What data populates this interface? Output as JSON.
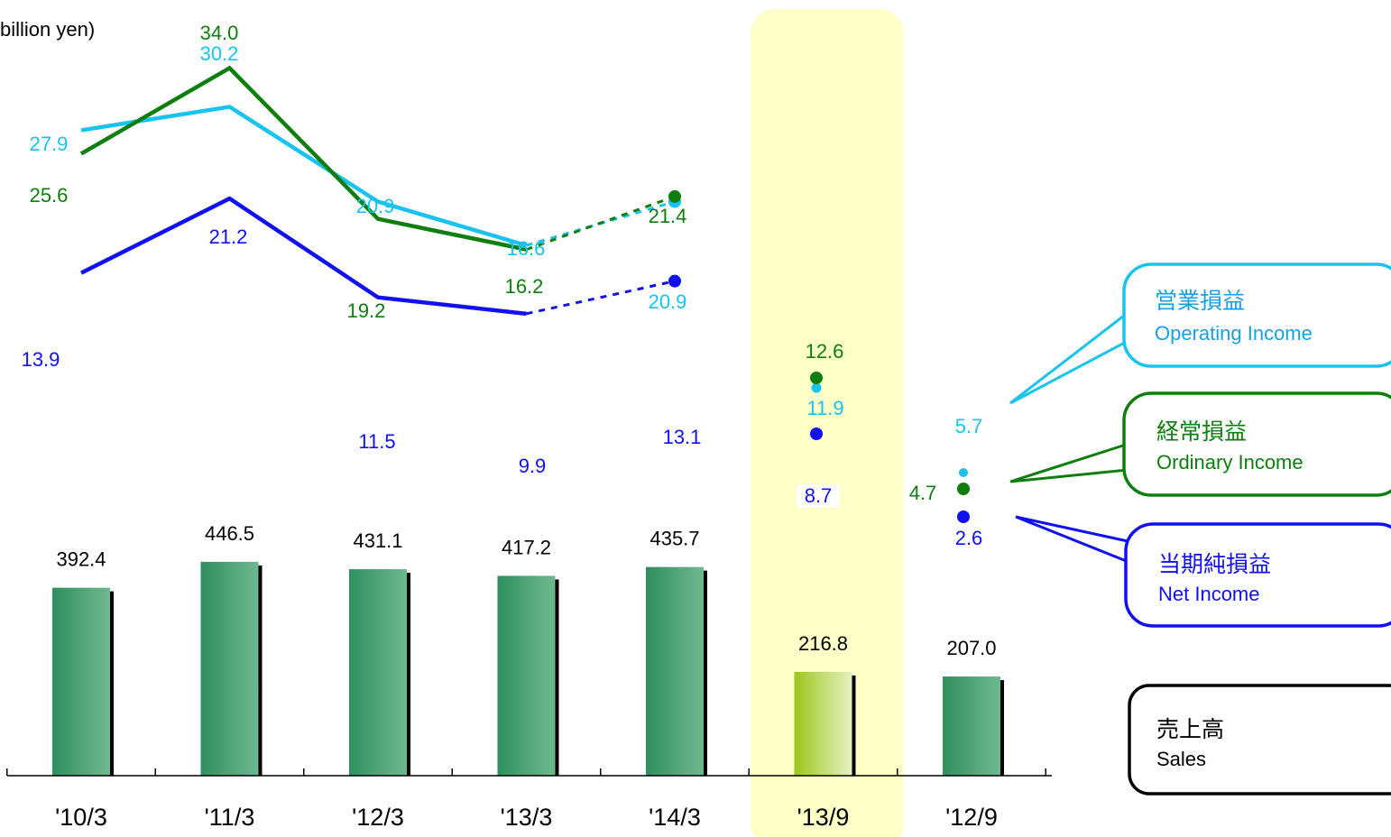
{
  "chart_data": {
    "type": "bar",
    "unit_label": "billion yen)",
    "categories": [
      "'10/3",
      "'11/3",
      "'12/3",
      "'13/3",
      "'14/3",
      "'13/9",
      "'12/9"
    ],
    "highlight_category": "'13/9",
    "sales": {
      "legend_jp": "売上高",
      "legend_en": "Sales",
      "values": [
        392.4,
        446.5,
        431.1,
        417.2,
        435.7,
        216.8,
        207.0
      ],
      "labels": [
        "392.4",
        "446.5",
        "431.1",
        "417.2",
        "435.7",
        "216.8",
        "207.0"
      ]
    },
    "series": [
      {
        "key": "operating",
        "name_jp": "営業損益",
        "name_en": "Operating Income",
        "color": "#19c3f0",
        "values": [
          27.9,
          30.2,
          20.9,
          16.6,
          20.9,
          11.9,
          5.7
        ],
        "labels": [
          "27.9",
          "30.2",
          "20.9",
          "16.6",
          "20.9",
          "11.9",
          "5.7"
        ]
      },
      {
        "key": "ordinary",
        "name_jp": "経常損益",
        "name_en": "Ordinary Income",
        "color": "#0e7e0e",
        "values": [
          25.6,
          34.0,
          19.2,
          16.2,
          21.4,
          12.6,
          4.7
        ],
        "labels": [
          "25.6",
          "34.0",
          "19.2",
          "16.2",
          "21.4",
          "12.6",
          "4.7"
        ]
      },
      {
        "key": "net",
        "name_jp": "当期純損益",
        "name_en": "Net Income",
        "color": "#1010f0",
        "values": [
          13.9,
          21.2,
          11.5,
          9.9,
          13.1,
          8.7,
          2.6
        ],
        "labels": [
          "13.9",
          "21.2",
          "11.5",
          "9.9",
          "13.1",
          "8.7",
          "2.6"
        ]
      }
    ],
    "line_style": "solid through '13/3, dotted to forecast '14/3; half-year values shown as points",
    "colors": {
      "bar": "#3a9a6a",
      "bar_highlight": "#a8cf30",
      "highlight_band": "#ffffc8",
      "sales_legend_border": "#000000"
    }
  }
}
